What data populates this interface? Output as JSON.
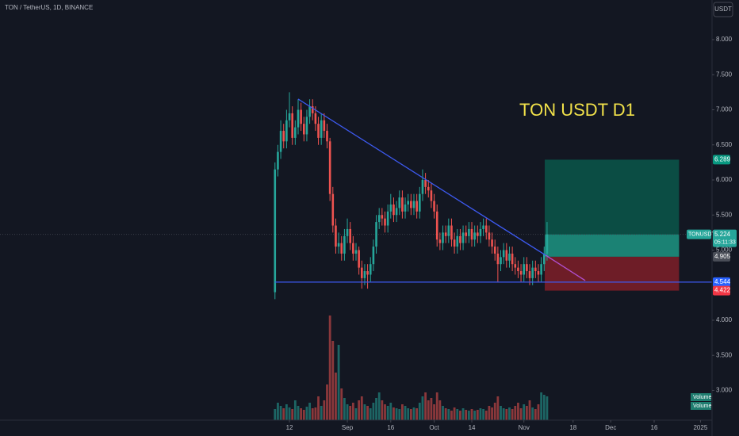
{
  "header": "TON / TetherUS, 1D, BINANCE",
  "currency_button": "USDT",
  "chart_data": {
    "type": "candlestick",
    "annotation": "TON USDT D1",
    "annotation_color": "#f2e24a",
    "up_color": "#26a69a",
    "down_color": "#ef5350",
    "x": [
      0,
      1,
      2,
      3,
      4,
      5,
      6,
      7,
      8,
      9,
      10,
      11,
      12,
      13,
      14,
      15,
      16,
      17,
      18,
      19,
      20,
      21,
      22,
      23,
      24,
      25,
      26,
      27,
      28,
      29,
      30,
      31,
      32,
      33,
      34,
      35,
      36,
      37,
      38,
      39,
      40,
      41,
      42,
      43,
      44,
      45,
      46,
      47,
      48,
      49,
      50,
      51,
      52,
      53,
      54,
      55,
      56,
      57,
      58,
      59,
      60,
      61,
      62,
      63,
      64,
      65,
      66,
      67,
      68,
      69,
      70,
      71,
      72,
      73,
      74,
      75,
      76,
      77,
      78,
      79,
      80,
      81,
      82,
      83,
      84,
      85,
      86,
      87,
      88,
      89,
      90,
      91,
      92,
      93,
      94
    ],
    "ohlc": [
      [
        4.4,
        6.25,
        4.3,
        6.15
      ],
      [
        6.15,
        6.5,
        6.05,
        6.4
      ],
      [
        6.4,
        6.85,
        6.3,
        6.7
      ],
      [
        6.7,
        6.8,
        6.45,
        6.55
      ],
      [
        6.55,
        7.0,
        6.45,
        6.85
      ],
      [
        6.85,
        7.25,
        6.75,
        6.95
      ],
      [
        6.95,
        7.05,
        6.5,
        6.6
      ],
      [
        6.6,
        6.85,
        6.5,
        6.75
      ],
      [
        6.75,
        7.15,
        6.65,
        7.0
      ],
      [
        7.0,
        7.1,
        6.7,
        6.8
      ],
      [
        6.8,
        6.9,
        6.55,
        6.65
      ],
      [
        6.65,
        7.0,
        6.55,
        6.9
      ],
      [
        6.9,
        7.15,
        6.8,
        7.05
      ],
      [
        7.05,
        7.15,
        6.85,
        6.95
      ],
      [
        6.95,
        7.05,
        6.7,
        6.8
      ],
      [
        6.8,
        6.9,
        6.5,
        6.6
      ],
      [
        6.6,
        6.95,
        6.5,
        6.85
      ],
      [
        6.85,
        6.95,
        6.6,
        6.7
      ],
      [
        6.7,
        6.8,
        6.45,
        6.55
      ],
      [
        6.55,
        6.6,
        5.7,
        5.8
      ],
      [
        5.8,
        5.9,
        5.25,
        5.35
      ],
      [
        5.35,
        5.45,
        4.95,
        5.05
      ],
      [
        5.05,
        5.25,
        4.95,
        5.1
      ],
      [
        5.1,
        5.2,
        4.85,
        4.95
      ],
      [
        4.95,
        5.3,
        4.85,
        5.2
      ],
      [
        5.2,
        5.45,
        5.1,
        5.3
      ],
      [
        5.3,
        5.4,
        5.0,
        5.1
      ],
      [
        5.1,
        5.2,
        4.85,
        4.95
      ],
      [
        4.95,
        5.1,
        4.85,
        5.0
      ],
      [
        5.0,
        5.05,
        4.65,
        4.75
      ],
      [
        4.75,
        4.85,
        4.45,
        4.6
      ],
      [
        4.6,
        4.8,
        4.5,
        4.7
      ],
      [
        4.7,
        4.8,
        4.45,
        4.65
      ],
      [
        4.65,
        4.9,
        4.55,
        4.8
      ],
      [
        4.8,
        5.15,
        4.7,
        5.05
      ],
      [
        5.05,
        5.5,
        4.95,
        5.4
      ],
      [
        5.4,
        5.6,
        5.3,
        5.5
      ],
      [
        5.5,
        5.6,
        5.35,
        5.45
      ],
      [
        5.45,
        5.55,
        5.25,
        5.35
      ],
      [
        5.35,
        5.65,
        5.25,
        5.55
      ],
      [
        5.55,
        5.8,
        5.45,
        5.65
      ],
      [
        5.65,
        5.75,
        5.4,
        5.5
      ],
      [
        5.5,
        5.7,
        5.4,
        5.6
      ],
      [
        5.6,
        5.85,
        5.5,
        5.75
      ],
      [
        5.75,
        5.85,
        5.45,
        5.55
      ],
      [
        5.55,
        5.75,
        5.45,
        5.65
      ],
      [
        5.65,
        5.8,
        5.55,
        5.7
      ],
      [
        5.7,
        5.8,
        5.5,
        5.6
      ],
      [
        5.6,
        5.8,
        5.5,
        5.7
      ],
      [
        5.7,
        5.8,
        5.45,
        5.55
      ],
      [
        5.55,
        5.9,
        5.45,
        5.8
      ],
      [
        5.8,
        6.15,
        5.7,
        6.0
      ],
      [
        6.0,
        6.1,
        5.8,
        5.9
      ],
      [
        5.9,
        6.0,
        5.75,
        5.85
      ],
      [
        5.85,
        5.95,
        5.6,
        5.7
      ],
      [
        5.7,
        5.8,
        5.45,
        5.55
      ],
      [
        5.55,
        5.65,
        5.05,
        5.15
      ],
      [
        5.15,
        5.25,
        5.0,
        5.1
      ],
      [
        5.1,
        5.35,
        5.0,
        5.25
      ],
      [
        5.25,
        5.35,
        5.1,
        5.2
      ],
      [
        5.2,
        5.45,
        5.1,
        5.35
      ],
      [
        5.35,
        5.45,
        5.05,
        5.15
      ],
      [
        5.15,
        5.25,
        4.95,
        5.05
      ],
      [
        5.05,
        5.3,
        4.95,
        5.2
      ],
      [
        5.2,
        5.3,
        5.0,
        5.1
      ],
      [
        5.1,
        5.35,
        5.0,
        5.25
      ],
      [
        5.25,
        5.35,
        5.1,
        5.2
      ],
      [
        5.2,
        5.4,
        5.1,
        5.3
      ],
      [
        5.3,
        5.4,
        5.05,
        5.15
      ],
      [
        5.15,
        5.35,
        5.05,
        5.25
      ],
      [
        5.25,
        5.35,
        5.1,
        5.2
      ],
      [
        5.2,
        5.4,
        5.1,
        5.3
      ],
      [
        5.3,
        5.45,
        5.2,
        5.35
      ],
      [
        5.35,
        5.45,
        5.15,
        5.25
      ],
      [
        5.25,
        5.35,
        5.05,
        5.15
      ],
      [
        5.15,
        5.25,
        4.95,
        5.05
      ],
      [
        5.05,
        5.15,
        4.85,
        4.95
      ],
      [
        4.95,
        5.05,
        4.55,
        4.8
      ],
      [
        4.8,
        5.0,
        4.7,
        4.9
      ],
      [
        4.9,
        5.1,
        4.8,
        5.0
      ],
      [
        5.0,
        5.1,
        4.75,
        4.85
      ],
      [
        4.85,
        5.05,
        4.75,
        4.95
      ],
      [
        4.95,
        5.05,
        4.7,
        4.8
      ],
      [
        4.8,
        4.9,
        4.65,
        4.75
      ],
      [
        4.75,
        4.85,
        4.6,
        4.7
      ],
      [
        4.7,
        4.8,
        4.55,
        4.65
      ],
      [
        4.65,
        4.9,
        4.55,
        4.8
      ],
      [
        4.8,
        4.9,
        4.6,
        4.7
      ],
      [
        4.7,
        4.8,
        4.5,
        4.6
      ],
      [
        4.6,
        4.85,
        4.5,
        4.75
      ],
      [
        4.75,
        4.85,
        4.6,
        4.7
      ],
      [
        4.7,
        4.8,
        4.55,
        4.65
      ],
      [
        4.65,
        4.9,
        4.55,
        4.8
      ],
      [
        4.8,
        5.05,
        4.7,
        4.95
      ],
      [
        4.95,
        5.4,
        4.85,
        5.224
      ]
    ],
    "volume": [
      14,
      22,
      18,
      15,
      20,
      16,
      14,
      25,
      18,
      15,
      13,
      17,
      22,
      15,
      16,
      30,
      18,
      25,
      45,
      132,
      100,
      60,
      95,
      40,
      28,
      20,
      18,
      22,
      15,
      25,
      30,
      20,
      18,
      15,
      22,
      28,
      35,
      25,
      20,
      18,
      22,
      16,
      15,
      14,
      20,
      18,
      15,
      14,
      16,
      15,
      22,
      30,
      35,
      25,
      28,
      20,
      35,
      25,
      18,
      15,
      14,
      12,
      16,
      14,
      12,
      15,
      13,
      12,
      14,
      12,
      13,
      15,
      14,
      12,
      18,
      16,
      22,
      30,
      18,
      15,
      14,
      16,
      14,
      18,
      22,
      15,
      20,
      18,
      25,
      16,
      14,
      20,
      35,
      32,
      30
    ],
    "vlim": [
      0,
      150
    ],
    "volume_legend": [
      "Volume",
      "Volume"
    ],
    "xlim": [
      -95,
      151
    ],
    "xticks": [
      {
        "value": 5,
        "label": "12"
      },
      {
        "value": 25,
        "label": "Sep"
      },
      {
        "value": 40,
        "label": "16"
      },
      {
        "value": 55,
        "label": "Oct"
      },
      {
        "value": 68,
        "label": "14"
      },
      {
        "value": 86,
        "label": "Nov"
      },
      {
        "value": 103,
        "label": "18"
      },
      {
        "value": 116,
        "label": "Dec"
      },
      {
        "value": 131,
        "label": "16"
      },
      {
        "value": 147,
        "label": "2025"
      }
    ],
    "ylim": [
      2.576,
      8.565
    ],
    "yticks": [
      {
        "value": 3,
        "label": "3.000"
      },
      {
        "value": 3.5,
        "label": "3.500"
      },
      {
        "value": 4,
        "label": "4.000"
      },
      {
        "value": 5,
        "label": "5.000"
      },
      {
        "value": 5.5,
        "label": "5.500"
      },
      {
        "value": 6,
        "label": "6.000"
      },
      {
        "value": 6.5,
        "label": "6.500"
      },
      {
        "value": 7,
        "label": "7.000"
      },
      {
        "value": 7.5,
        "label": "7.500"
      },
      {
        "value": 8,
        "label": "8.000"
      }
    ],
    "trendlines": [
      {
        "x": [
          8,
          93.5
        ],
        "y": [
          7.153,
          4.927
        ],
        "color": "#3d5af1"
      },
      {
        "x": [
          93.5,
          107.2
        ],
        "y": [
          4.927,
          4.565
        ],
        "color": "#b04fd0"
      },
      {
        "x": [
          0,
          151
        ],
        "y": [
          4.544,
          4.544
        ],
        "color": "#3d5af1"
      }
    ],
    "position": {
      "x": [
        93.2,
        139.6
      ],
      "target": 6.289,
      "entry": 4.905,
      "stop": 4.422
    },
    "last_price": 5.224,
    "symbol": "TONUSDT",
    "countdown": "05:11:33",
    "price_labels": [
      {
        "value": 6.289,
        "color": "#089981"
      },
      {
        "value": 4.905,
        "color": "#4a4e58"
      },
      {
        "value": 4.544,
        "color": "#2962ff"
      },
      {
        "value": 4.422,
        "color": "#f23645"
      }
    ]
  }
}
